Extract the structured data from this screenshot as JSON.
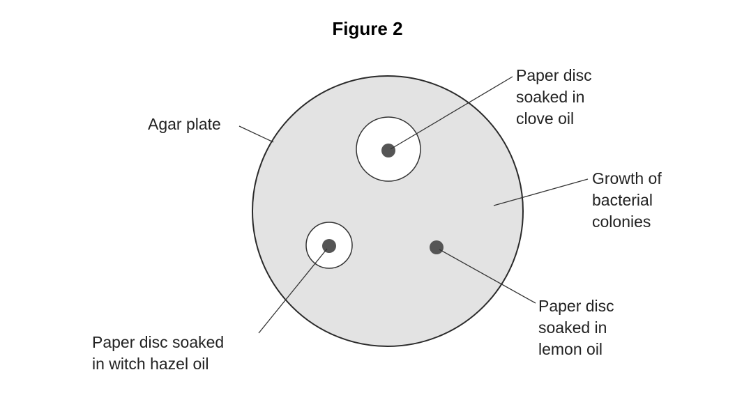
{
  "title": "Figure 2",
  "colors": {
    "plate_fill": "#e3e3e3",
    "plate_stroke": "#2a2a2a",
    "clear_zone": "#ffffff",
    "disc": "#555555",
    "leader_line": "#333333",
    "text": "#222222"
  },
  "labels": {
    "agar_plate": [
      "Agar plate"
    ],
    "clove_disc": [
      "Paper disc",
      "soaked in",
      "clove oil"
    ],
    "growth": [
      "Growth of",
      "bacterial",
      "colonies"
    ],
    "witch_hazel_disc": [
      "Paper disc soaked",
      "in witch hazel oil"
    ],
    "lemon_disc": [
      "Paper disc",
      "soaked in",
      "lemon oil"
    ]
  }
}
